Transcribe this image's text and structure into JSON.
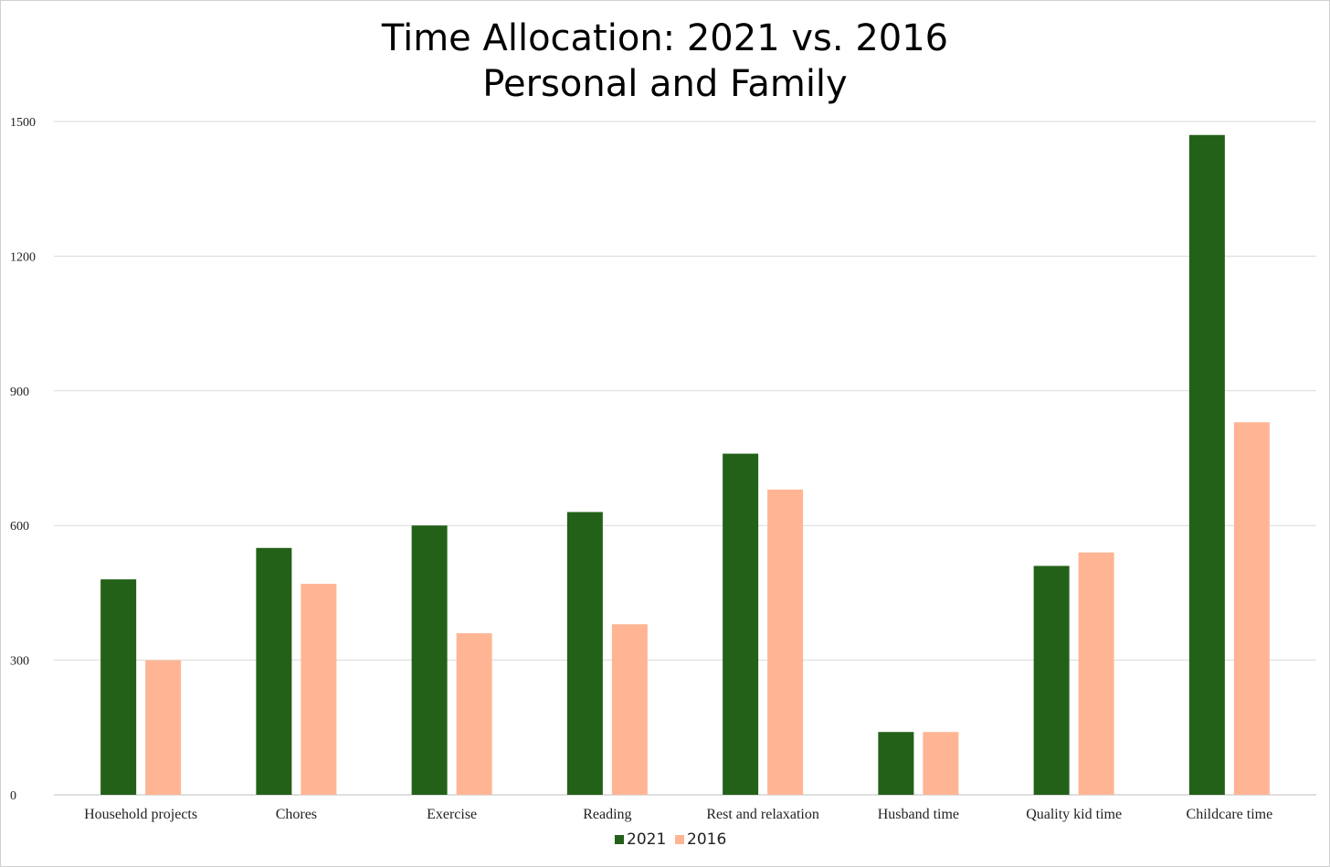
{
  "chart_data": {
    "type": "bar",
    "title": [
      "Time Allocation: 2021 vs. 2016",
      "Personal and Family"
    ],
    "xlabel": "",
    "ylabel": "",
    "ylim": [
      0,
      1500
    ],
    "yticks": [
      0,
      300,
      600,
      900,
      1200,
      1500
    ],
    "grid": "horizontal",
    "legend_position": "bottom-center",
    "categories": [
      "Household projects",
      "Chores",
      "Exercise",
      "Reading",
      "Rest and relaxation",
      "Husband time",
      "Quality kid time",
      "Childcare time"
    ],
    "series": [
      {
        "name": "2021",
        "color": "#236118",
        "values": [
          480,
          550,
          600,
          630,
          760,
          140,
          510,
          1470
        ]
      },
      {
        "name": "2016",
        "color": "#ffb593",
        "values": [
          300,
          470,
          360,
          380,
          680,
          140,
          540,
          830
        ]
      }
    ]
  }
}
